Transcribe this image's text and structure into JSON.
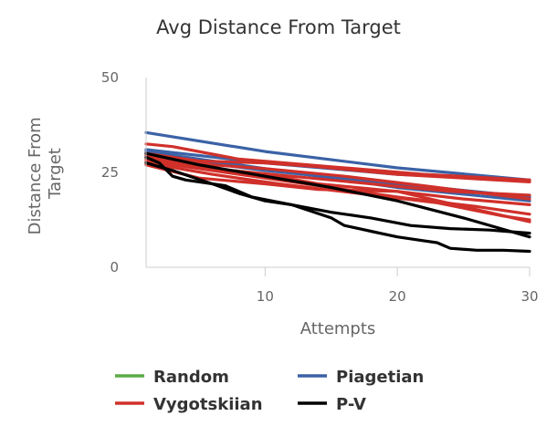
{
  "chart_data": {
    "type": "line",
    "title": "Avg Distance From Target",
    "xlabel": "Attempts",
    "ylabel": "Distance From Target",
    "xlim": [
      1,
      30
    ],
    "ylim": [
      0,
      50
    ],
    "yticks": [
      0,
      25,
      50
    ],
    "xticks": [
      10,
      20,
      30
    ],
    "grid": false,
    "legend_position": "bottom",
    "legend": [
      {
        "name": "Random",
        "color": "#5aab46"
      },
      {
        "name": "Piagetian",
        "color": "#3b62a6"
      },
      {
        "name": "Vygotskiian",
        "color": "#d0302a"
      },
      {
        "name": "P-V",
        "color": "#000000"
      }
    ],
    "colors": {
      "Random": "#5aab46",
      "Piagetian": "#3b62a6",
      "Vygotskiian": "#d0302a",
      "P-V": "#000000",
      "axis": "#cccccc"
    },
    "series": [
      {
        "group": "Piagetian",
        "points": [
          [
            1,
            35.5
          ],
          [
            10,
            30.5
          ],
          [
            20,
            26.2
          ],
          [
            30,
            23
          ]
        ]
      },
      {
        "group": "Piagetian",
        "points": [
          [
            1,
            31
          ],
          [
            10,
            27.5
          ],
          [
            20,
            24.5
          ],
          [
            30,
            23
          ]
        ]
      },
      {
        "group": "Piagetian",
        "points": [
          [
            1,
            30.5
          ],
          [
            10,
            26
          ],
          [
            20,
            21
          ],
          [
            30,
            17.5
          ]
        ]
      },
      {
        "group": "Piagetian",
        "points": [
          [
            1,
            29.5
          ],
          [
            10,
            25.5
          ],
          [
            20,
            22
          ],
          [
            30,
            18.5
          ]
        ]
      },
      {
        "group": "Vygotskiian",
        "points": [
          [
            1,
            32.5
          ],
          [
            3,
            31.8
          ],
          [
            8,
            28.5
          ],
          [
            15,
            26.5
          ],
          [
            22,
            24.5
          ],
          [
            30,
            23
          ]
        ]
      },
      {
        "group": "Vygotskiian",
        "points": [
          [
            1,
            30
          ],
          [
            5,
            28
          ],
          [
            10,
            27.5
          ],
          [
            14,
            26.5
          ],
          [
            20,
            24.5
          ],
          [
            30,
            22.5
          ]
        ]
      },
      {
        "group": "Vygotskiian",
        "points": [
          [
            1,
            29
          ],
          [
            6,
            27
          ],
          [
            10,
            26
          ],
          [
            16,
            24
          ],
          [
            22,
            21.5
          ],
          [
            30,
            18
          ]
        ]
      },
      {
        "group": "Vygotskiian",
        "points": [
          [
            1,
            28.5
          ],
          [
            5,
            26.5
          ],
          [
            10,
            24.5
          ],
          [
            14,
            22
          ],
          [
            20,
            20
          ],
          [
            25,
            18
          ],
          [
            30,
            16.5
          ]
        ]
      },
      {
        "group": "Vygotskiian",
        "points": [
          [
            1,
            28
          ],
          [
            6,
            25.5
          ],
          [
            10,
            23.5
          ],
          [
            15,
            21
          ],
          [
            20,
            18.5
          ],
          [
            26,
            16
          ],
          [
            30,
            14
          ]
        ]
      },
      {
        "group": "Vygotskiian",
        "points": [
          [
            1,
            27.5
          ],
          [
            6,
            24.5
          ],
          [
            11,
            22
          ],
          [
            17,
            19.5
          ],
          [
            23,
            17
          ],
          [
            28,
            13.5
          ],
          [
            30,
            12.5
          ]
        ]
      },
      {
        "group": "Vygotskiian",
        "points": [
          [
            1,
            27
          ],
          [
            5,
            23.5
          ],
          [
            10,
            22
          ],
          [
            14,
            20.5
          ],
          [
            20,
            20
          ],
          [
            25,
            16
          ],
          [
            30,
            12
          ]
        ]
      },
      {
        "group": "Vygotskiian",
        "points": [
          [
            1,
            29.5
          ],
          [
            6,
            26
          ],
          [
            12,
            24
          ],
          [
            18,
            22
          ],
          [
            24,
            20
          ],
          [
            30,
            19
          ]
        ]
      },
      {
        "group": "P-V",
        "points": [
          [
            1,
            30
          ],
          [
            5,
            27
          ],
          [
            10,
            24
          ],
          [
            15,
            21
          ],
          [
            20,
            17.5
          ],
          [
            25,
            13
          ],
          [
            30,
            8
          ]
        ]
      },
      {
        "group": "P-V",
        "points": [
          [
            1,
            29
          ],
          [
            2,
            27.5
          ],
          [
            3,
            24
          ],
          [
            4,
            23
          ],
          [
            7,
            21.5
          ],
          [
            9,
            18.5
          ],
          [
            12,
            16.5
          ],
          [
            15,
            14.5
          ],
          [
            18,
            13
          ],
          [
            21,
            11
          ],
          [
            24,
            10.2
          ],
          [
            27,
            9.8
          ],
          [
            30,
            9
          ]
        ]
      },
      {
        "group": "P-V",
        "points": [
          [
            1,
            27.5
          ],
          [
            3,
            25.5
          ],
          [
            6,
            22
          ],
          [
            8,
            19.5
          ],
          [
            10,
            17.5
          ],
          [
            12,
            16.5
          ],
          [
            15,
            13
          ],
          [
            16,
            11
          ],
          [
            18,
            9.5
          ],
          [
            20,
            8
          ],
          [
            22,
            7
          ],
          [
            23,
            6.5
          ],
          [
            24,
            5
          ],
          [
            26,
            4.5
          ],
          [
            28,
            4.5
          ],
          [
            30,
            4.2
          ]
        ]
      }
    ]
  }
}
